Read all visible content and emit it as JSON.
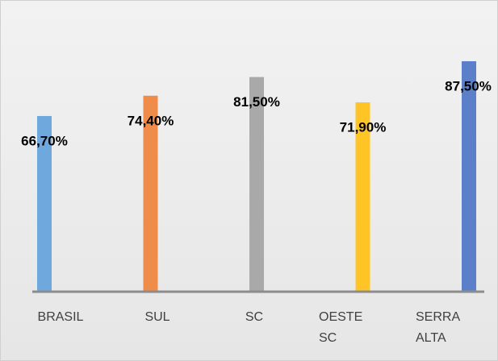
{
  "chart_data": {
    "type": "bar",
    "categories": [
      "BRASIL",
      "SUL",
      "SC",
      "OESTE SC",
      "SERRA ALTA"
    ],
    "values": [
      66.7,
      74.4,
      81.5,
      71.9,
      87.5
    ],
    "value_labels": [
      "66,70%",
      "74,40%",
      "81,50%",
      "71,90%",
      "87,50%"
    ],
    "colors": [
      "#6fa8dc",
      "#f08c4a",
      "#a9a9a9",
      "#ffc527",
      "#5b7fc9"
    ],
    "ylim": [
      0,
      93
    ]
  }
}
